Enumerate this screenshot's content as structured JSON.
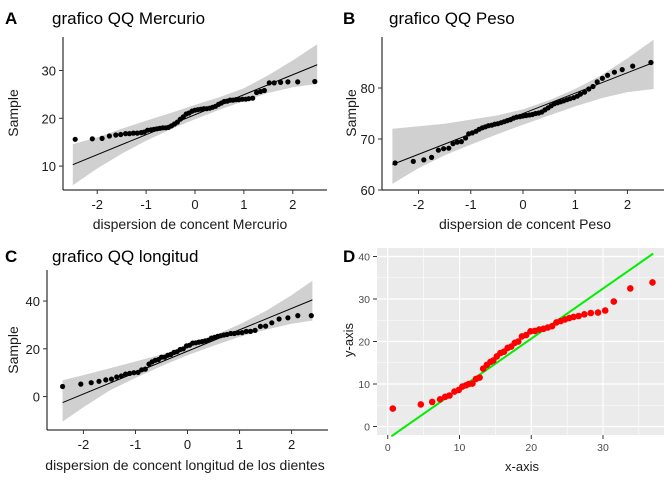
{
  "chart_data": [
    {
      "panel_label": "A",
      "type": "scatter",
      "title": "grafico QQ Mercurio",
      "xlabel": "dispersion de concent Mercurio",
      "ylabel": "Sample",
      "xlim": [
        -2.7,
        2.7
      ],
      "ylim": [
        5,
        37
      ],
      "xticks": [
        -2,
        -1,
        0,
        1,
        2
      ],
      "yticks": [
        10,
        20,
        30
      ],
      "grid": false,
      "reference_line": {
        "x": [
          -2.5,
          2.5
        ],
        "y": [
          10.3,
          31.2
        ]
      },
      "confidence_band": {
        "x": [
          -2.5,
          -2.0,
          -1.5,
          -1.0,
          -0.5,
          0.0,
          0.5,
          1.0,
          1.5,
          2.0,
          2.5
        ],
        "lower": [
          6.0,
          9.5,
          12.6,
          15.3,
          17.7,
          19.8,
          21.8,
          23.6,
          25.3,
          26.5,
          27.2
        ],
        "upper": [
          14.6,
          16.0,
          17.8,
          19.5,
          21.1,
          22.8,
          24.4,
          26.3,
          29.0,
          32.1,
          35.5
        ]
      },
      "points": {
        "x": [
          -2.45,
          -2.1,
          -1.9,
          -1.75,
          -1.62,
          -1.52,
          -1.42,
          -1.34,
          -1.26,
          -1.18,
          -1.1,
          -1.04,
          -0.97,
          -0.9,
          -0.84,
          -0.78,
          -0.72,
          -0.66,
          -0.6,
          -0.54,
          -0.48,
          -0.42,
          -0.36,
          -0.3,
          -0.24,
          -0.18,
          -0.12,
          -0.06,
          0.0,
          0.06,
          0.12,
          0.18,
          0.24,
          0.3,
          0.36,
          0.42,
          0.48,
          0.54,
          0.6,
          0.66,
          0.72,
          0.78,
          0.84,
          0.9,
          0.97,
          1.04,
          1.1,
          1.18,
          1.26,
          1.34,
          1.42,
          1.52,
          1.62,
          1.75,
          1.9,
          2.1,
          2.45
        ],
        "y": [
          15.6,
          15.7,
          15.8,
          16.3,
          16.5,
          16.6,
          16.8,
          16.8,
          16.9,
          16.9,
          17.0,
          17.1,
          17.5,
          17.6,
          17.7,
          17.8,
          17.9,
          18.0,
          18.0,
          18.1,
          18.4,
          18.8,
          19.2,
          19.8,
          20.3,
          20.9,
          21.1,
          21.5,
          21.7,
          21.8,
          21.9,
          22.0,
          22.0,
          22.1,
          22.3,
          22.5,
          22.9,
          23.2,
          23.5,
          23.6,
          23.8,
          23.8,
          23.9,
          23.9,
          24.0,
          24.0,
          24.1,
          24.2,
          25.4,
          25.6,
          25.8,
          27.4,
          27.4,
          27.5,
          27.6,
          27.6,
          27.7
        ]
      }
    },
    {
      "panel_label": "B",
      "type": "scatter",
      "title": "grafico QQ Peso",
      "xlabel": "dispersion de concent Peso",
      "ylabel": "Sample",
      "xlim": [
        -2.7,
        2.7
      ],
      "ylim": [
        60,
        90
      ],
      "xticks": [
        -2,
        -1,
        0,
        1,
        2
      ],
      "yticks": [
        60,
        70,
        80
      ],
      "grid": false,
      "reference_line": {
        "x": [
          -2.5,
          2.5
        ],
        "y": [
          65.0,
          85.0
        ]
      },
      "confidence_band": {
        "x": [
          -2.5,
          -2.0,
          -1.5,
          -1.0,
          -0.5,
          0.0,
          0.5,
          1.0,
          1.5,
          2.0,
          2.5
        ],
        "lower": [
          61.2,
          64.3,
          66.8,
          68.9,
          70.9,
          72.8,
          74.6,
          76.4,
          78.0,
          79.2,
          79.8
        ],
        "upper": [
          72.0,
          72.5,
          73.0,
          73.8,
          74.6,
          75.8,
          77.6,
          79.8,
          82.5,
          85.8,
          89.5
        ]
      },
      "points": {
        "x": [
          -2.45,
          -2.1,
          -1.9,
          -1.75,
          -1.62,
          -1.52,
          -1.42,
          -1.34,
          -1.26,
          -1.18,
          -1.1,
          -1.04,
          -0.97,
          -0.9,
          -0.84,
          -0.78,
          -0.72,
          -0.66,
          -0.6,
          -0.54,
          -0.48,
          -0.42,
          -0.36,
          -0.3,
          -0.24,
          -0.18,
          -0.12,
          -0.06,
          0.0,
          0.06,
          0.12,
          0.18,
          0.24,
          0.3,
          0.36,
          0.42,
          0.48,
          0.54,
          0.6,
          0.66,
          0.72,
          0.78,
          0.84,
          0.9,
          0.97,
          1.04,
          1.1,
          1.18,
          1.26,
          1.34,
          1.42,
          1.52,
          1.62,
          1.75,
          1.9,
          2.1,
          2.45
        ],
        "y": [
          65.3,
          65.6,
          65.9,
          66.4,
          67.8,
          68.1,
          68.2,
          69.1,
          69.4,
          69.5,
          70.2,
          71.0,
          71.2,
          71.5,
          71.9,
          72.2,
          72.4,
          72.6,
          72.7,
          72.9,
          73.0,
          73.2,
          73.4,
          73.6,
          73.8,
          74.1,
          74.3,
          74.4,
          74.5,
          74.6,
          74.7,
          74.8,
          75.0,
          75.1,
          75.3,
          75.7,
          76.1,
          76.5,
          76.9,
          77.1,
          77.3,
          77.5,
          77.7,
          77.9,
          78.1,
          78.4,
          78.8,
          79.2,
          79.8,
          80.3,
          81.2,
          81.9,
          82.5,
          83.1,
          83.6,
          84.3,
          85.0
        ]
      }
    },
    {
      "panel_label": "C",
      "type": "scatter",
      "title": "grafico QQ longitud",
      "xlabel": "dispersion de concent longitud de los dientes",
      "ylabel": "Sample",
      "xlim": [
        -2.7,
        2.7
      ],
      "ylim": [
        -14,
        53
      ],
      "xticks": [
        -2,
        -1,
        0,
        1,
        2
      ],
      "yticks": [
        0,
        20,
        40
      ],
      "grid": false,
      "reference_line": {
        "x": [
          -2.4,
          2.4
        ],
        "y": [
          -2.5,
          40.5
        ]
      },
      "confidence_band": {
        "x": [
          -2.4,
          -2.0,
          -1.5,
          -1.0,
          -0.5,
          0.0,
          0.5,
          1.0,
          1.5,
          2.0,
          2.4
        ],
        "lower": [
          -10.5,
          -4.5,
          2.5,
          7.8,
          12.8,
          17.3,
          21.3,
          25.0,
          28.0,
          30.5,
          31.8
        ],
        "upper": [
          6.8,
          9.0,
          11.8,
          14.7,
          17.6,
          21.2,
          25.5,
          30.2,
          35.8,
          42.5,
          48.5
        ]
      },
      "points": {
        "x": [
          -2.4,
          -2.05,
          -1.85,
          -1.7,
          -1.57,
          -1.46,
          -1.36,
          -1.27,
          -1.19,
          -1.11,
          -1.03,
          -0.95,
          -0.88,
          -0.81,
          -0.74,
          -0.68,
          -0.62,
          -0.56,
          -0.5,
          -0.44,
          -0.38,
          -0.32,
          -0.26,
          -0.2,
          -0.14,
          -0.08,
          -0.02,
          0.04,
          0.1,
          0.16,
          0.22,
          0.28,
          0.34,
          0.4,
          0.46,
          0.52,
          0.58,
          0.64,
          0.7,
          0.76,
          0.83,
          0.9,
          0.97,
          1.05,
          1.13,
          1.21,
          1.3,
          1.4,
          1.5,
          1.62,
          1.76,
          1.93,
          2.12,
          2.38
        ],
        "y": [
          4.2,
          5.2,
          5.8,
          6.4,
          7.0,
          7.3,
          8.2,
          8.6,
          9.4,
          9.7,
          10.0,
          10.1,
          11.2,
          11.5,
          13.6,
          14.5,
          15.2,
          15.5,
          16.5,
          16.5,
          17.3,
          17.6,
          18.5,
          18.8,
          19.7,
          20.0,
          21.2,
          21.5,
          22.4,
          22.5,
          22.8,
          23.0,
          23.3,
          23.6,
          24.5,
          24.8,
          25.2,
          25.5,
          25.8,
          26.0,
          26.4,
          26.4,
          26.7,
          26.8,
          27.3,
          27.3,
          27.7,
          29.4,
          29.5,
          30.9,
          32.5,
          33.0,
          33.9,
          33.9
        ]
      }
    },
    {
      "panel_label": "D",
      "type": "scatter",
      "title": "",
      "xlabel": "x-axis",
      "ylabel": "y-axis",
      "xlim": [
        -1.5,
        38.5
      ],
      "ylim": [
        -2.0,
        42.0
      ],
      "xticks": [
        0,
        10,
        20,
        30
      ],
      "yticks": [
        0,
        10,
        20,
        30,
        40
      ],
      "grid": true,
      "colors": {
        "points": "#ff0000",
        "line": "#00ee00",
        "panel_background": "#ebebeb",
        "grid": "#ffffff"
      },
      "reference_line": {
        "x": [
          0.5,
          37.0
        ],
        "y": [
          -2.3,
          40.7
        ]
      },
      "points": {
        "x": [
          0.7,
          4.6,
          6.2,
          7.3,
          8.0,
          8.6,
          9.3,
          9.9,
          10.4,
          10.9,
          11.3,
          11.8,
          12.3,
          12.8,
          13.3,
          13.8,
          14.3,
          14.7,
          15.2,
          15.7,
          16.2,
          16.7,
          17.2,
          17.7,
          18.2,
          18.7,
          19.3,
          19.9,
          20.5,
          21.1,
          21.7,
          22.3,
          22.9,
          23.5,
          24.1,
          24.7,
          25.3,
          25.9,
          26.6,
          27.4,
          28.3,
          29.3,
          30.3,
          31.5,
          33.8,
          36.9
        ],
        "y": [
          4.2,
          5.2,
          5.8,
          6.4,
          7.0,
          7.3,
          8.2,
          8.6,
          9.4,
          9.7,
          10.0,
          10.1,
          11.2,
          11.5,
          13.6,
          14.5,
          15.2,
          15.5,
          16.5,
          17.3,
          17.6,
          18.5,
          18.8,
          19.7,
          20.0,
          21.2,
          21.5,
          22.4,
          22.5,
          22.8,
          23.0,
          23.3,
          23.6,
          24.5,
          24.8,
          25.2,
          25.5,
          25.8,
          26.0,
          26.4,
          26.7,
          26.8,
          27.3,
          29.4,
          32.5,
          33.9
        ]
      }
    }
  ]
}
